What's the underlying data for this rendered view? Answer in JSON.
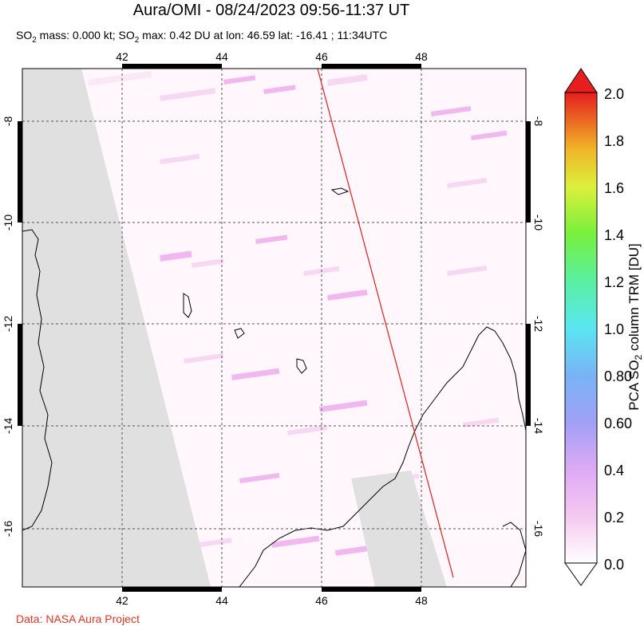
{
  "title": "Aura/OMI - 08/24/2023 09:56-11:37 UT",
  "subtitle": {
    "so2_prefix": "SO",
    "so2_sub": "2",
    "mass_text": " mass: 0.000 kt; SO",
    "max_sub": "2",
    "max_text": " max: 0.42 DU at lon: 46.59 lat: -16.41 ; 11:34UTC"
  },
  "credit": "Data: NASA Aura Project",
  "map": {
    "lon_ticks": [
      "42",
      "44",
      "46",
      "48"
    ],
    "lat_ticks": [
      "-8",
      "-10",
      "-12",
      "-14",
      "-16"
    ],
    "colors": {
      "no_data": "#e0e0e0",
      "coast": "#000000",
      "track": "#e0201a",
      "grid": "#555555",
      "low_so2": "#f7d4f2",
      "mid_so2": "#f0b0ee"
    }
  },
  "colorbar": {
    "labels": [
      "2.0",
      "1.8",
      "1.6",
      "1.4",
      "1.2",
      "1.0",
      "0.80",
      "0.60",
      "0.4",
      "0.2",
      "0.0"
    ],
    "title_prefix": "PCA SO",
    "title_sub": "2",
    "title_suffix": " column TRM [DU]",
    "colors": [
      "#ffffff",
      "#f5c8f0",
      "#c8a0f0",
      "#8c8cf0",
      "#5ad2f0",
      "#64f0dc",
      "#5af05a",
      "#c8f050",
      "#f0f03c",
      "#f0b428",
      "#f06428",
      "#e61e1e"
    ]
  }
}
